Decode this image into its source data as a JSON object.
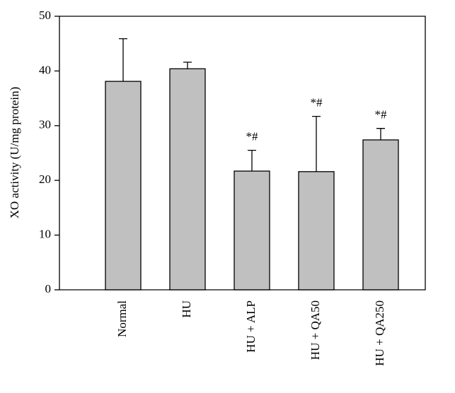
{
  "chart_data": {
    "type": "bar",
    "y_label": "XO activity (U/mg protein)",
    "categories": [
      "Normal",
      "HU",
      "HU + ALP",
      "HU + QA50",
      "HU + QA250"
    ],
    "values": [
      38.1,
      40.4,
      21.7,
      21.6,
      27.4
    ],
    "errors": [
      7.8,
      1.2,
      3.8,
      10.1,
      2.1
    ],
    "annotations": [
      null,
      null,
      "*#",
      "*#",
      "*#"
    ],
    "color": "#c0c0c0",
    "ylim": [
      0,
      50
    ],
    "yticks": [
      0,
      10,
      20,
      30,
      40,
      50
    ],
    "grid": false
  }
}
